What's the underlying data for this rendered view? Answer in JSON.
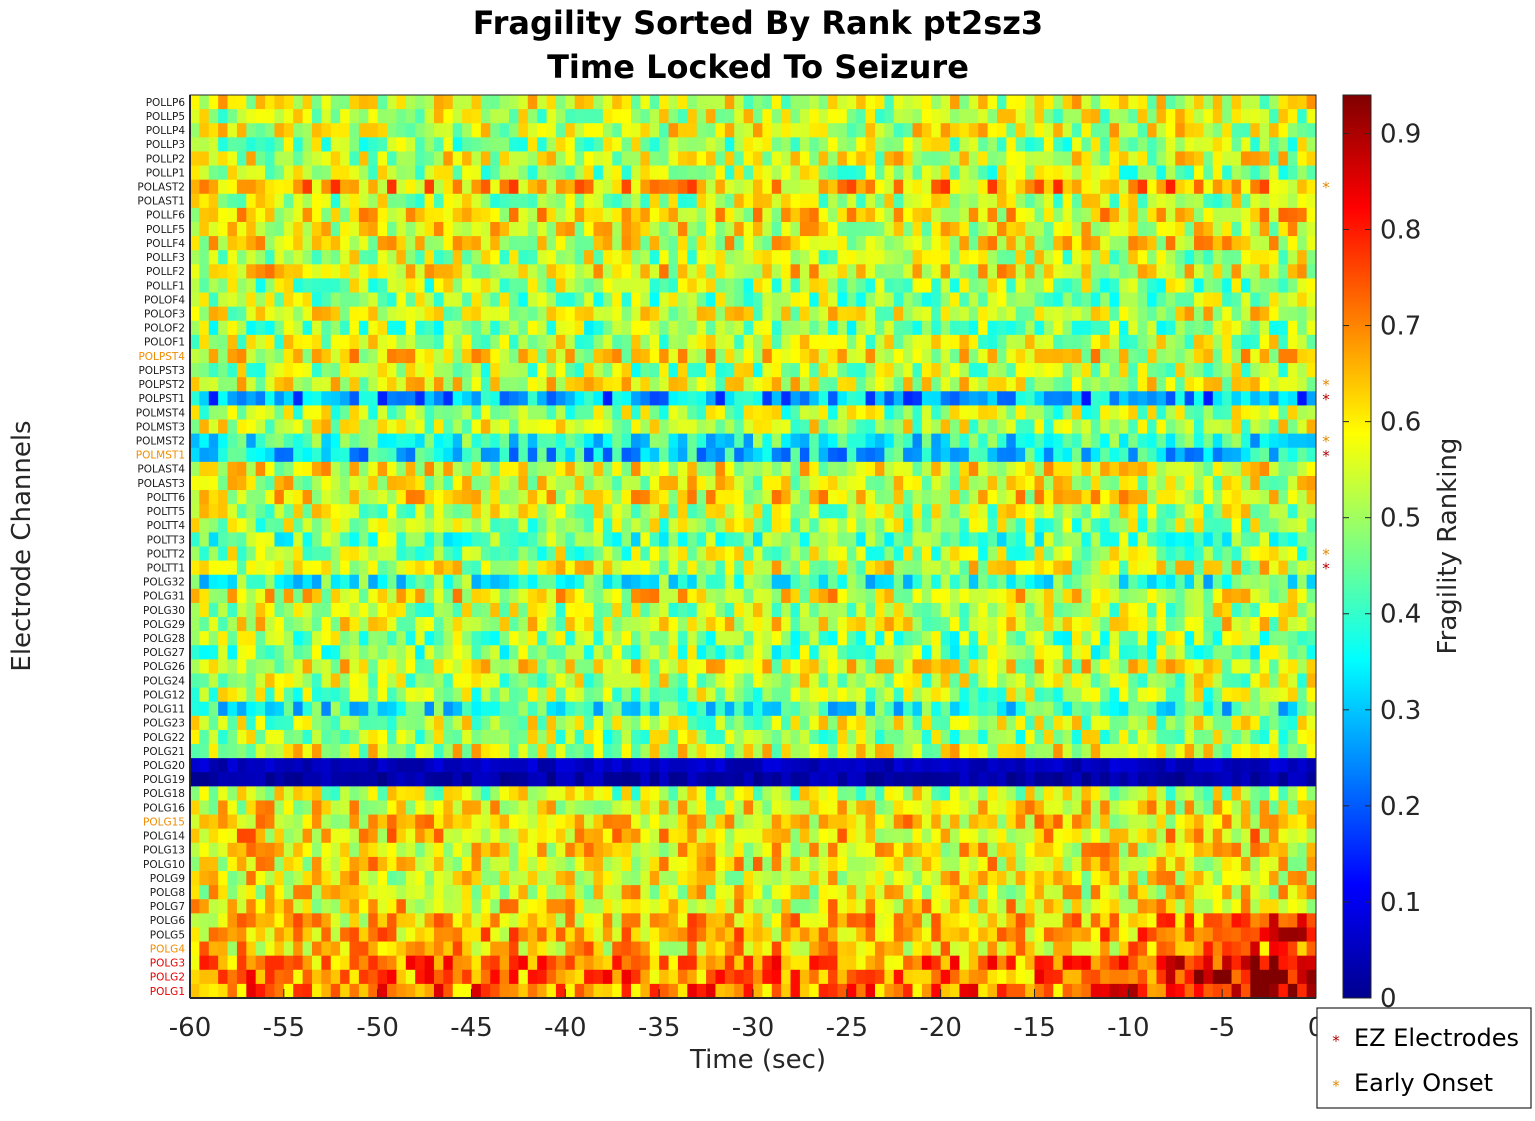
{
  "chart_data": {
    "type": "heatmap",
    "title_line1": "Fragility Sorted By Rank pt2sz3",
    "title_line2": "Time Locked To Seizure",
    "xlabel": "Time (sec)",
    "ylabel": "Electrode Channels",
    "colorbar_label": "Fragility Ranking",
    "colormap": "jet",
    "colorbar_range": [
      0,
      0.94
    ],
    "colorbar_ticks": [
      "0",
      "0.1",
      "0.2",
      "0.3",
      "0.4",
      "0.5",
      "0.6",
      "0.7",
      "0.8",
      "0.9"
    ],
    "colorbar_tick_values": [
      0,
      0.1,
      0.2,
      0.3,
      0.4,
      0.5,
      0.6,
      0.7,
      0.8,
      0.9
    ],
    "xlim": [
      -60,
      0
    ],
    "x_ticks": [
      "-60",
      "-55",
      "-50",
      "-45",
      "-40",
      "-35",
      "-30",
      "-25",
      "-20",
      "-15",
      "-10",
      "-5",
      "0"
    ],
    "x_tick_values": [
      -60,
      -55,
      -50,
      -45,
      -40,
      -35,
      -30,
      -25,
      -20,
      -15,
      -10,
      -5,
      0
    ],
    "time_bins": 120,
    "channels": [
      {
        "name": "POLLP6",
        "group": "normal",
        "mean": 0.55
      },
      {
        "name": "POLLP5",
        "group": "normal",
        "mean": 0.53
      },
      {
        "name": "POLLP4",
        "group": "normal",
        "mean": 0.55
      },
      {
        "name": "POLLP3",
        "group": "normal",
        "mean": 0.5
      },
      {
        "name": "POLLP2",
        "group": "normal",
        "mean": 0.55
      },
      {
        "name": "POLLP1",
        "group": "normal",
        "mean": 0.5
      },
      {
        "name": "POLAST2",
        "group": "normal",
        "mean": 0.66
      },
      {
        "name": "POLAST1",
        "group": "normal",
        "mean": 0.52
      },
      {
        "name": "POLLF6",
        "group": "normal",
        "mean": 0.6
      },
      {
        "name": "POLLF5",
        "group": "normal",
        "mean": 0.57
      },
      {
        "name": "POLLF4",
        "group": "normal",
        "mean": 0.58
      },
      {
        "name": "POLLF3",
        "group": "normal",
        "mean": 0.52
      },
      {
        "name": "POLLF2",
        "group": "normal",
        "mean": 0.58
      },
      {
        "name": "POLLF1",
        "group": "normal",
        "mean": 0.5
      },
      {
        "name": "POLOF4",
        "group": "normal",
        "mean": 0.49
      },
      {
        "name": "POLOF3",
        "group": "normal",
        "mean": 0.55
      },
      {
        "name": "POLOF2",
        "group": "normal",
        "mean": 0.48
      },
      {
        "name": "POLOF1",
        "group": "normal",
        "mean": 0.52
      },
      {
        "name": "POLPST4",
        "group": "early",
        "mean": 0.58
      },
      {
        "name": "POLPST3",
        "group": "normal",
        "mean": 0.5
      },
      {
        "name": "POLPST2",
        "group": "normal",
        "mean": 0.55
      },
      {
        "name": "POLPST1",
        "group": "normal",
        "mean": 0.27
      },
      {
        "name": "POLMST4",
        "group": "normal",
        "mean": 0.5
      },
      {
        "name": "POLMST3",
        "group": "normal",
        "mean": 0.53
      },
      {
        "name": "POLMST2",
        "group": "normal",
        "mean": 0.38
      },
      {
        "name": "POLMST1",
        "group": "early",
        "mean": 0.33
      },
      {
        "name": "POLAST4",
        "group": "normal",
        "mean": 0.57
      },
      {
        "name": "POLAST3",
        "group": "normal",
        "mean": 0.55
      },
      {
        "name": "POLTT6",
        "group": "normal",
        "mean": 0.58
      },
      {
        "name": "POLTT5",
        "group": "normal",
        "mean": 0.52
      },
      {
        "name": "POLTT4",
        "group": "normal",
        "mean": 0.5
      },
      {
        "name": "POLTT3",
        "group": "normal",
        "mean": 0.45
      },
      {
        "name": "POLTT2",
        "group": "normal",
        "mean": 0.5
      },
      {
        "name": "POLTT1",
        "group": "normal",
        "mean": 0.55
      },
      {
        "name": "POLG32",
        "group": "normal",
        "mean": 0.4
      },
      {
        "name": "POLG31",
        "group": "normal",
        "mean": 0.58
      },
      {
        "name": "POLG30",
        "group": "normal",
        "mean": 0.52
      },
      {
        "name": "POLG29",
        "group": "normal",
        "mean": 0.55
      },
      {
        "name": "POLG28",
        "group": "normal",
        "mean": 0.48
      },
      {
        "name": "POLG27",
        "group": "normal",
        "mean": 0.47
      },
      {
        "name": "POLG26",
        "group": "normal",
        "mean": 0.56
      },
      {
        "name": "POLG24",
        "group": "normal",
        "mean": 0.52
      },
      {
        "name": "POLG12",
        "group": "normal",
        "mean": 0.5
      },
      {
        "name": "POLG11",
        "group": "normal",
        "mean": 0.38
      },
      {
        "name": "POLG23",
        "group": "normal",
        "mean": 0.52
      },
      {
        "name": "POLG22",
        "group": "normal",
        "mean": 0.5
      },
      {
        "name": "POLG21",
        "group": "normal",
        "mean": 0.55
      },
      {
        "name": "POLG20",
        "group": "normal",
        "mean": 0.06
      },
      {
        "name": "POLG19",
        "group": "normal",
        "mean": 0.04
      },
      {
        "name": "POLG18",
        "group": "normal",
        "mean": 0.52
      },
      {
        "name": "POLG16",
        "group": "normal",
        "mean": 0.58
      },
      {
        "name": "POLG15",
        "group": "early",
        "mean": 0.6
      },
      {
        "name": "POLG14",
        "group": "normal",
        "mean": 0.62
      },
      {
        "name": "POLG13",
        "group": "normal",
        "mean": 0.6
      },
      {
        "name": "POLG10",
        "group": "normal",
        "mean": 0.6
      },
      {
        "name": "POLG9",
        "group": "normal",
        "mean": 0.58
      },
      {
        "name": "POLG8",
        "group": "normal",
        "mean": 0.58
      },
      {
        "name": "POLG7",
        "group": "normal",
        "mean": 0.6
      },
      {
        "name": "POLG6",
        "group": "normal",
        "mean": 0.63
      },
      {
        "name": "POLG5",
        "group": "normal",
        "mean": 0.65
      },
      {
        "name": "POLG4",
        "group": "early",
        "mean": 0.62
      },
      {
        "name": "POLG3",
        "group": "ez",
        "mean": 0.7
      },
      {
        "name": "POLG2",
        "group": "ez",
        "mean": 0.7
      },
      {
        "name": "POLG1",
        "group": "ez",
        "mean": 0.72
      }
    ],
    "markers": [
      {
        "channel": "POLAST2",
        "type": "early"
      },
      {
        "channel": "POLPST2",
        "type": "early"
      },
      {
        "channel": "POLPST1",
        "type": "ez"
      },
      {
        "channel": "POLMST2",
        "type": "early"
      },
      {
        "channel": "POLMST1",
        "type": "ez"
      },
      {
        "channel": "POLTT2",
        "type": "early"
      },
      {
        "channel": "POLTT1",
        "type": "ez"
      }
    ],
    "legend": {
      "placement": "bottom-right",
      "entries": [
        {
          "label": "EZ Electrodes",
          "marker": "*",
          "color": "#b30000"
        },
        {
          "label": "Early Onset",
          "marker": "*",
          "color": "#e08a00"
        }
      ]
    }
  },
  "colors": {
    "ez": "#e60000",
    "early": "#f08c00",
    "normal": "#1a1a1a",
    "ez_marker": "#b30000",
    "early_marker": "#e08a00"
  }
}
